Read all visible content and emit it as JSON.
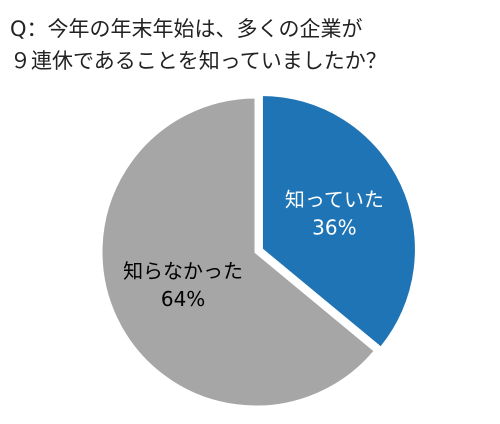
{
  "chart_data": {
    "type": "pie",
    "title": [
      "Q：今年の年末年始は、多くの企業が",
      "９連休であることを知っていましたか？"
    ],
    "categories": [
      "知っていた",
      "知らなかった"
    ],
    "values": [
      36,
      64
    ],
    "value_labels": [
      "36%",
      "64%"
    ],
    "colors": [
      "#1f74b5",
      "#a6a6a6"
    ],
    "label_colors": [
      "#ffffff",
      "#000000"
    ]
  }
}
